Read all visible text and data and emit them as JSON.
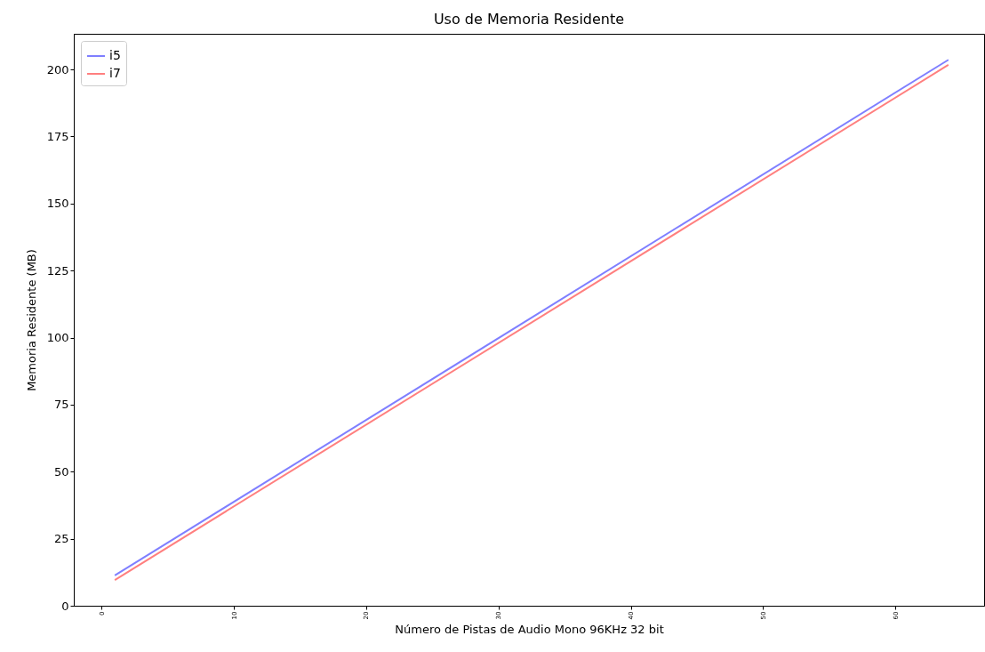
{
  "chart_data": {
    "type": "line",
    "title": "Uso de Memoria Residente",
    "xlabel": "Número de Pistas de Audio Mono 96KHz 32 bit",
    "ylabel": "Memoria Residente (MB)",
    "x": [
      1,
      64
    ],
    "series": [
      {
        "name": "i5",
        "color": "#7f7fff",
        "values": [
          11.3,
          203.6
        ]
      },
      {
        "name": "i7",
        "color": "#ff7f7f",
        "values": [
          9.6,
          201.7
        ]
      }
    ],
    "xlim": [
      -2.1,
      66.7
    ],
    "xticks": [
      0,
      10,
      20,
      30,
      40,
      50,
      60
    ],
    "ylim": [
      0,
      213.3
    ],
    "yticks": [
      0,
      25,
      50,
      75,
      100,
      125,
      150,
      175,
      200
    ],
    "grid": false,
    "legend": "top left",
    "marker": "none",
    "line_style": "solid"
  }
}
